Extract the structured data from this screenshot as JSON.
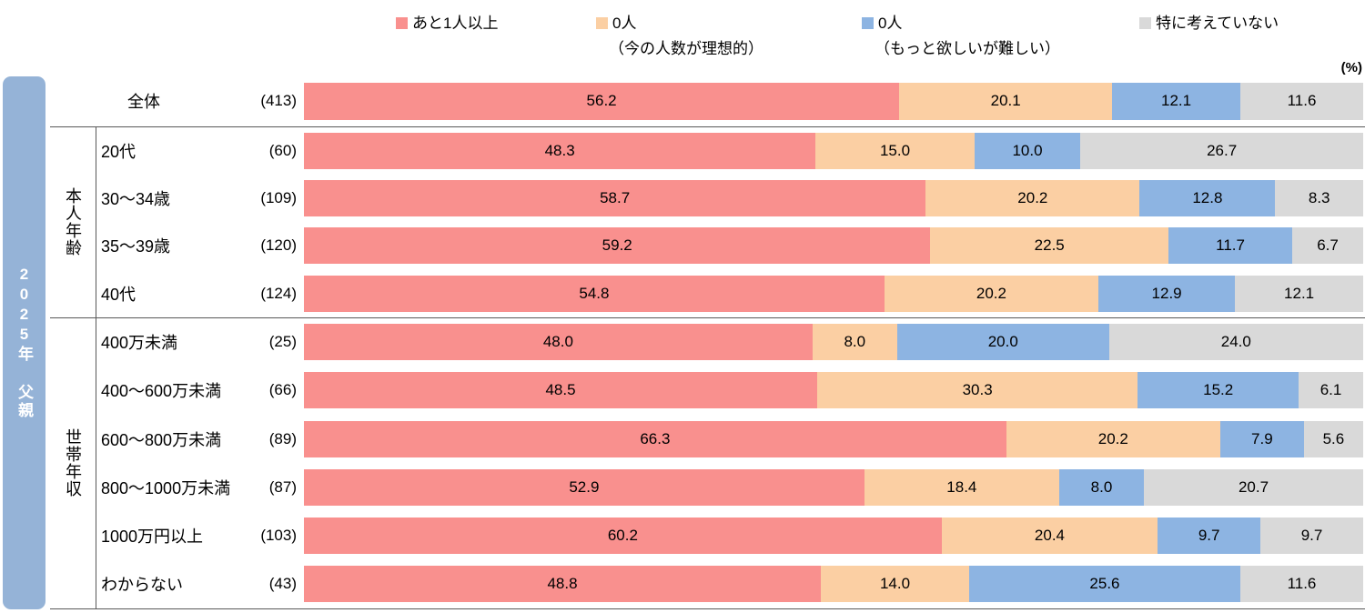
{
  "unit_label": "(%)",
  "sidebar": {
    "title": "2025年 父親"
  },
  "colors": {
    "red": "#F9908E",
    "peach": "#FBCFA3",
    "blue": "#8DB4E2",
    "gray": "#D9D9D9",
    "sidebar_blue": "#95B3D7",
    "line": "#595959"
  },
  "legend": [
    {
      "label": "あと1人以上",
      "sublabel": "",
      "color": "red"
    },
    {
      "label": "0人",
      "sublabel": "（今の人数が理想的）",
      "color": "peach"
    },
    {
      "label": "0人",
      "sublabel": "（もっと欲しいが難しい）",
      "color": "blue"
    },
    {
      "label": "特に考えていない",
      "sublabel": "",
      "color": "gray"
    }
  ],
  "chart_data": {
    "type": "bar",
    "stacked": true,
    "orientation": "horizontal",
    "unit": "%",
    "xlim": [
      0,
      100
    ],
    "legend_position": "top",
    "grid": false,
    "series_names": [
      "あと1人以上",
      "0人（今の人数が理想的）",
      "0人（もっと欲しいが難しい）",
      "特に考えていない"
    ],
    "total_row": {
      "label": "全体",
      "n": 413,
      "values": [
        56.2,
        20.1,
        12.1,
        11.6
      ]
    },
    "groups": [
      {
        "label": "本人年齢",
        "rows": [
          {
            "label": "20代",
            "n": 60,
            "values": [
              48.3,
              15.0,
              10.0,
              26.7
            ]
          },
          {
            "label": "30～34歳",
            "n": 109,
            "values": [
              58.7,
              20.2,
              12.8,
              8.3
            ]
          },
          {
            "label": "35～39歳",
            "n": 120,
            "values": [
              59.2,
              22.5,
              11.7,
              6.7
            ]
          },
          {
            "label": "40代",
            "n": 124,
            "values": [
              54.8,
              20.2,
              12.9,
              12.1
            ]
          }
        ]
      },
      {
        "label": "世帯年収",
        "rows": [
          {
            "label": "400万未満",
            "n": 25,
            "values": [
              48.0,
              8.0,
              20.0,
              24.0
            ]
          },
          {
            "label": "400～600万未満",
            "n": 66,
            "values": [
              48.5,
              30.3,
              15.2,
              6.1
            ]
          },
          {
            "label": "600～800万未満",
            "n": 89,
            "values": [
              66.3,
              20.2,
              7.9,
              5.6
            ]
          },
          {
            "label": "800～1000万未満",
            "n": 87,
            "values": [
              52.9,
              18.4,
              8.0,
              20.7
            ]
          },
          {
            "label": "1000万円以上",
            "n": 103,
            "values": [
              60.2,
              20.4,
              9.7,
              9.7
            ]
          },
          {
            "label": "わからない",
            "n": 43,
            "values": [
              48.8,
              14.0,
              25.6,
              11.6
            ]
          }
        ]
      }
    ]
  }
}
